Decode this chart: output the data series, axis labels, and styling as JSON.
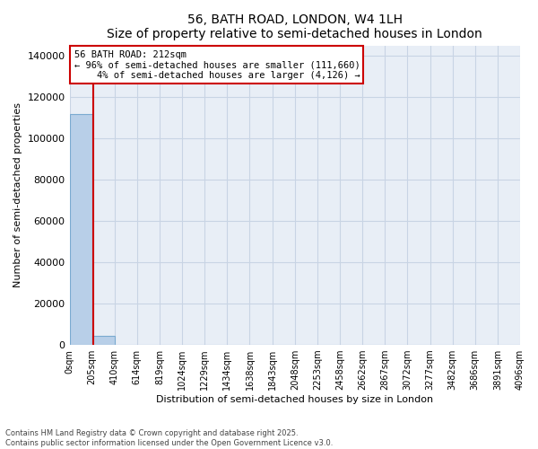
{
  "title": "56, BATH ROAD, LONDON, W4 1LH",
  "subtitle": "Size of property relative to semi-detached houses in London",
  "xlabel": "Distribution of semi-detached houses by size in London",
  "ylabel": "Number of semi-detached properties",
  "property_size": 212,
  "pct_smaller": 96,
  "count_smaller": 111660,
  "pct_larger": 4,
  "count_larger": 4126,
  "annotation_line1": "56 BATH ROAD: 212sqm",
  "annotation_line2": "← 96% of semi-detached houses are smaller (111,660)",
  "annotation_line3": "    4% of semi-detached houses are larger (4,126) →",
  "bar_color": "#b8cfe8",
  "bar_edge_color": "#7aaad0",
  "vline_color": "#cc0000",
  "annotation_box_edgecolor": "#cc0000",
  "grid_color": "#c8d4e4",
  "background_color": "#e8eef6",
  "ylim": [
    0,
    145000
  ],
  "yticks": [
    0,
    20000,
    40000,
    60000,
    80000,
    100000,
    120000,
    140000
  ],
  "footer_line1": "Contains HM Land Registry data © Crown copyright and database right 2025.",
  "footer_line2": "Contains public sector information licensed under the Open Government Licence v3.0.",
  "bin_edges": [
    0,
    205,
    410,
    614,
    819,
    1024,
    1229,
    1434,
    1638,
    1843,
    2048,
    2253,
    2458,
    2662,
    2867,
    3072,
    3277,
    3482,
    3686,
    3891,
    4096
  ],
  "bin_counts": [
    111660,
    4126,
    0,
    0,
    0,
    0,
    0,
    0,
    0,
    0,
    0,
    0,
    0,
    0,
    0,
    0,
    0,
    0,
    0,
    0
  ]
}
